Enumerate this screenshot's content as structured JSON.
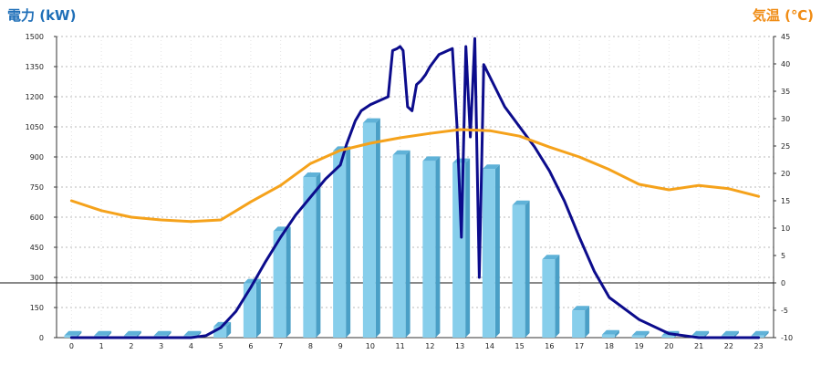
{
  "chart_data": {
    "type": "bar",
    "left_axis_label": "電力 (kW)",
    "right_axis_label": "気温 (℃)",
    "categories": [
      "0",
      "1",
      "2",
      "3",
      "4",
      "5",
      "6",
      "7",
      "8",
      "9",
      "10",
      "11",
      "12",
      "13",
      "14",
      "15",
      "16",
      "17",
      "18",
      "19",
      "20",
      "21",
      "22",
      "23"
    ],
    "left_ylim": [
      0,
      1500
    ],
    "left_ticks": [
      "0",
      "150",
      "300",
      "450",
      "600",
      "750",
      "900",
      "1050",
      "1200",
      "1350",
      "1500"
    ],
    "right_ylim": [
      -10,
      45
    ],
    "right_ticks": [
      "-10",
      "-5",
      "0",
      "5",
      "10",
      "15",
      "20",
      "25",
      "30",
      "35",
      "40",
      "45"
    ],
    "grid": true,
    "colors": {
      "bars": "#87ceeb",
      "bar_side": "#4a9fc6",
      "power_line": "#0c0c8c",
      "temperature_line": "#f5a21b",
      "left_title": "#1f6fb8",
      "right_title": "#f08c14"
    },
    "series": [
      {
        "kind": "bar",
        "axis": "left",
        "values": [
          10,
          10,
          10,
          10,
          10,
          55,
          270,
          530,
          800,
          930,
          1070,
          910,
          880,
          870,
          840,
          660,
          390,
          135,
          15,
          10,
          10,
          10,
          10,
          10
        ]
      },
      {
        "kind": "line",
        "axis": "left",
        "x": [
          0,
          1,
          2,
          3,
          4,
          4.5,
          5,
          5.5,
          6,
          6.5,
          7,
          7.5,
          8,
          8.5,
          9,
          9.2,
          9.35,
          9.5,
          9.7,
          10,
          10.3,
          10.6,
          10.75,
          10.9,
          11.0,
          11.1,
          11.25,
          11.4,
          11.55,
          11.7,
          11.85,
          12.0,
          12.15,
          12.3,
          12.45,
          12.6,
          12.75,
          12.9,
          13.05,
          13.2,
          13.35,
          13.5,
          13.65,
          13.8,
          14,
          14.5,
          15,
          15.5,
          16,
          16.5,
          17,
          17.5,
          18,
          19,
          20,
          21,
          22,
          23
        ],
        "values": [
          0,
          0,
          0,
          0,
          0,
          10,
          50,
          130,
          250,
          380,
          500,
          610,
          700,
          790,
          860,
          960,
          1020,
          1080,
          1130,
          1160,
          1180,
          1200,
          1430,
          1440,
          1450,
          1430,
          1150,
          1130,
          1260,
          1280,
          1310,
          1350,
          1380,
          1410,
          1420,
          1430,
          1440,
          1060,
          500,
          1450,
          1000,
          1490,
          300,
          1360,
          1300,
          1150,
          1050,
          950,
          830,
          680,
          500,
          330,
          200,
          90,
          20,
          0,
          0,
          0
        ]
      },
      {
        "kind": "line",
        "axis": "right",
        "x": [
          0,
          1,
          2,
          3,
          4,
          5,
          6,
          7,
          8,
          9,
          10,
          11,
          12,
          13,
          14,
          15,
          16,
          17,
          18,
          19,
          20,
          21,
          22,
          23
        ],
        "values": [
          15,
          13.2,
          12,
          11.5,
          11.2,
          11.5,
          14.8,
          17.8,
          21.8,
          24.2,
          25.5,
          26.5,
          27.3,
          28,
          27.8,
          26.8,
          24.8,
          23,
          20.7,
          18,
          17,
          17.8,
          17.2,
          15.8
        ]
      }
    ]
  }
}
